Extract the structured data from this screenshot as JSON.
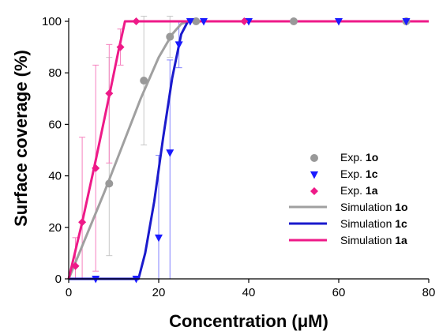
{
  "chart_data": {
    "type": "scatter",
    "xlabel": "Concentration (μM)",
    "ylabel": "Surface coverage (%)",
    "xlim": [
      0,
      80
    ],
    "ylim": [
      0,
      100
    ],
    "x_ticks": [
      0,
      20,
      40,
      60,
      80
    ],
    "y_ticks": [
      0,
      20,
      40,
      60,
      80,
      100
    ],
    "legend_position": "center-right",
    "series": [
      {
        "name": "Exp. 1o",
        "name_prefix": "Exp. ",
        "name_bold": "1o",
        "kind": "points",
        "marker": "circle",
        "color": "#999999",
        "points": [
          {
            "x": 9,
            "y": 37,
            "err_low": 28,
            "err_high": 49
          },
          {
            "x": 16.7,
            "y": 77,
            "err_low": 25,
            "err_high": 25
          },
          {
            "x": 22.5,
            "y": 94,
            "err_low": 8,
            "err_high": 8
          },
          {
            "x": 28.3,
            "y": 100
          },
          {
            "x": 50,
            "y": 100
          },
          {
            "x": 75,
            "y": 100
          }
        ]
      },
      {
        "name": "Exp. 1c",
        "name_prefix": "Exp. ",
        "name_bold": "1c",
        "kind": "points",
        "marker": "triangle-down",
        "color": "#1a1aff",
        "points": [
          {
            "x": 6,
            "y": 0
          },
          {
            "x": 15,
            "y": 0
          },
          {
            "x": 20,
            "y": 16,
            "err_low": 16,
            "err_high": 32
          },
          {
            "x": 22.5,
            "y": 49,
            "err_low": 49,
            "err_high": 36
          },
          {
            "x": 24.5,
            "y": 91,
            "err_low": 9,
            "err_high": 9
          },
          {
            "x": 27,
            "y": 100
          },
          {
            "x": 30,
            "y": 100
          },
          {
            "x": 40,
            "y": 100
          },
          {
            "x": 60,
            "y": 100
          },
          {
            "x": 75,
            "y": 100
          }
        ]
      },
      {
        "name": "Exp. 1a",
        "name_prefix": "Exp. ",
        "name_bold": "1a",
        "kind": "points",
        "marker": "diamond",
        "color": "#ee1a88",
        "points": [
          {
            "x": 1.5,
            "y": 5,
            "err_low": 5,
            "err_high": 11
          },
          {
            "x": 3,
            "y": 22,
            "err_low": 22,
            "err_high": 33
          },
          {
            "x": 6,
            "y": 43,
            "err_low": 40,
            "err_high": 40
          },
          {
            "x": 9,
            "y": 72,
            "err_low": 27,
            "err_high": 19
          },
          {
            "x": 11.5,
            "y": 90,
            "err_low": 7,
            "err_high": 7
          },
          {
            "x": 15,
            "y": 100
          },
          {
            "x": 39,
            "y": 100
          }
        ]
      },
      {
        "name": "Simulation 1o",
        "name_prefix": "Simulation ",
        "name_bold": "1o",
        "kind": "line",
        "color": "#a0a0a0",
        "x": [
          0,
          4,
          8,
          12,
          16,
          20,
          23,
          25,
          26.5,
          28,
          80
        ],
        "values": [
          0,
          17,
          34,
          52,
          70,
          86,
          95,
          99,
          100,
          100,
          100
        ]
      },
      {
        "name": "Simulation 1c",
        "name_prefix": "Simulation ",
        "name_bold": "1c",
        "kind": "line",
        "color": "#1a1acc",
        "x": [
          0,
          15.5,
          17,
          19,
          21,
          23,
          25,
          26.5,
          80
        ],
        "values": [
          0,
          0,
          10,
          30,
          55,
          78,
          95,
          100,
          100
        ]
      },
      {
        "name": "Simulation 1a",
        "name_prefix": "Simulation ",
        "name_bold": "1a",
        "kind": "line",
        "color": "#ee1a88",
        "x": [
          0,
          3,
          6,
          9,
          11,
          12.5,
          80
        ],
        "values": [
          0,
          22,
          46,
          71,
          88,
          100,
          100
        ]
      }
    ]
  }
}
